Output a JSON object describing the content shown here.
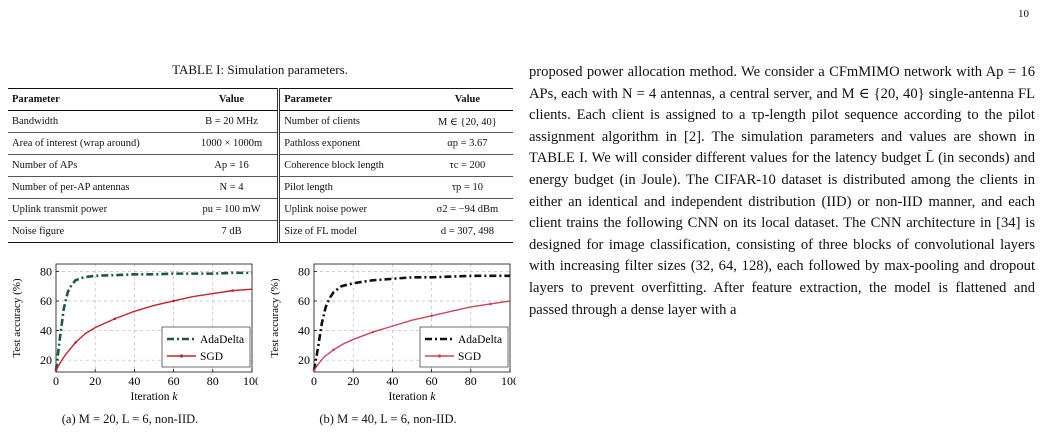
{
  "page_number": "10",
  "table": {
    "caption": "TABLE I: Simulation parameters.",
    "headers": [
      "Parameter",
      "Value",
      "Parameter",
      "Value"
    ],
    "rows": [
      [
        "Bandwidth",
        "B = 20 MHz",
        "Number of clients",
        "M ∈ {20, 40}"
      ],
      [
        "Area of interest (wrap around)",
        "1000 × 1000m",
        "Pathloss exponent",
        "αp = 3.67"
      ],
      [
        "Number of APs",
        "Ap = 16",
        "Coherence block length",
        "τc = 200"
      ],
      [
        "Number of per-AP antennas",
        "N = 4",
        "Pilot length",
        "τp = 10"
      ],
      [
        "Uplink transmit power",
        "pu = 100 mW",
        "Uplink noise power",
        "σ2 = −94 dBm"
      ],
      [
        "Noise figure",
        "7 dB",
        "Size of FL model",
        "d = 307, 498"
      ]
    ]
  },
  "body_text": "proposed power allocation method. We consider a CFmMIMO network with Ap = 16 APs, each with N = 4 antennas, a central server, and M ∈ {20, 40} single-antenna FL clients. Each client is assigned to a τp-length pilot sequence according to the pilot assignment algorithm in [2]. The simulation parameters and values are shown in TABLE I. We will consider different values for the latency budget L̄ (in seconds) and energy budget (in Joule). The CIFAR-10 dataset is distributed among the clients in either an identical and independent distribution (IID) or non-IID manner, and each client trains the following CNN on its local dataset. The CNN architecture in [34] is designed for image classification, consisting of three blocks of convolutional layers with increasing filter sizes (32, 64, 128), each followed by max-pooling and dropout layers to prevent overfitting. After feature extraction, the model is flattened and passed through a dense layer with a",
  "chart_data": [
    {
      "type": "line",
      "caption": "(a) M = 20, L = 6, non-IID.",
      "xlabel": "Iteration k",
      "ylabel": "Test accuracy (%)",
      "xlim": [
        0,
        100
      ],
      "ylim": [
        12,
        85
      ],
      "xticks": [
        0,
        20,
        40,
        60,
        80,
        100
      ],
      "yticks": [
        20,
        40,
        60,
        80
      ],
      "grid": true,
      "legend_position": "bottom-right",
      "series": [
        {
          "name": "AdaDelta",
          "color": "#1f5a3a",
          "dash": "dashdot",
          "x": [
            0,
            2,
            4,
            6,
            8,
            10,
            14,
            20,
            30,
            40,
            50,
            60,
            70,
            80,
            90,
            100
          ],
          "y": [
            13,
            35,
            55,
            66,
            71,
            74,
            76,
            77,
            77.5,
            78,
            78,
            78.5,
            78.5,
            78.5,
            79,
            79
          ]
        },
        {
          "name": "SGD",
          "color": "#c0242d",
          "dash": "solid",
          "x": [
            0,
            2,
            5,
            10,
            15,
            20,
            30,
            40,
            50,
            60,
            70,
            80,
            90,
            100
          ],
          "y": [
            13,
            18,
            24,
            32,
            38,
            42,
            48,
            53,
            57,
            60,
            63,
            65,
            67,
            68
          ]
        }
      ]
    },
    {
      "type": "line",
      "caption": "(b) M = 40, L = 6, non-IID.",
      "xlabel": "Iteration k",
      "ylabel": "Test accuracy (%)",
      "xlim": [
        0,
        100
      ],
      "ylim": [
        12,
        85
      ],
      "xticks": [
        0,
        20,
        40,
        60,
        80,
        100
      ],
      "yticks": [
        20,
        40,
        60,
        80
      ],
      "grid": true,
      "legend_position": "bottom-right",
      "series": [
        {
          "name": "AdaDelta",
          "color": "#111111",
          "dash": "dashdot",
          "x": [
            0,
            2,
            4,
            6,
            8,
            10,
            14,
            20,
            30,
            40,
            50,
            60,
            70,
            80,
            90,
            100
          ],
          "y": [
            13,
            28,
            45,
            56,
            62,
            66,
            70,
            72,
            74,
            75,
            76,
            76,
            76.5,
            77,
            77,
            77
          ]
        },
        {
          "name": "SGD",
          "color": "#c9475a",
          "dash": "solid",
          "x": [
            0,
            2,
            5,
            10,
            15,
            20,
            30,
            40,
            50,
            60,
            70,
            80,
            90,
            100
          ],
          "y": [
            13,
            17,
            22,
            27,
            31,
            34,
            39,
            43,
            47,
            50,
            53,
            56,
            58,
            60
          ]
        }
      ]
    }
  ]
}
